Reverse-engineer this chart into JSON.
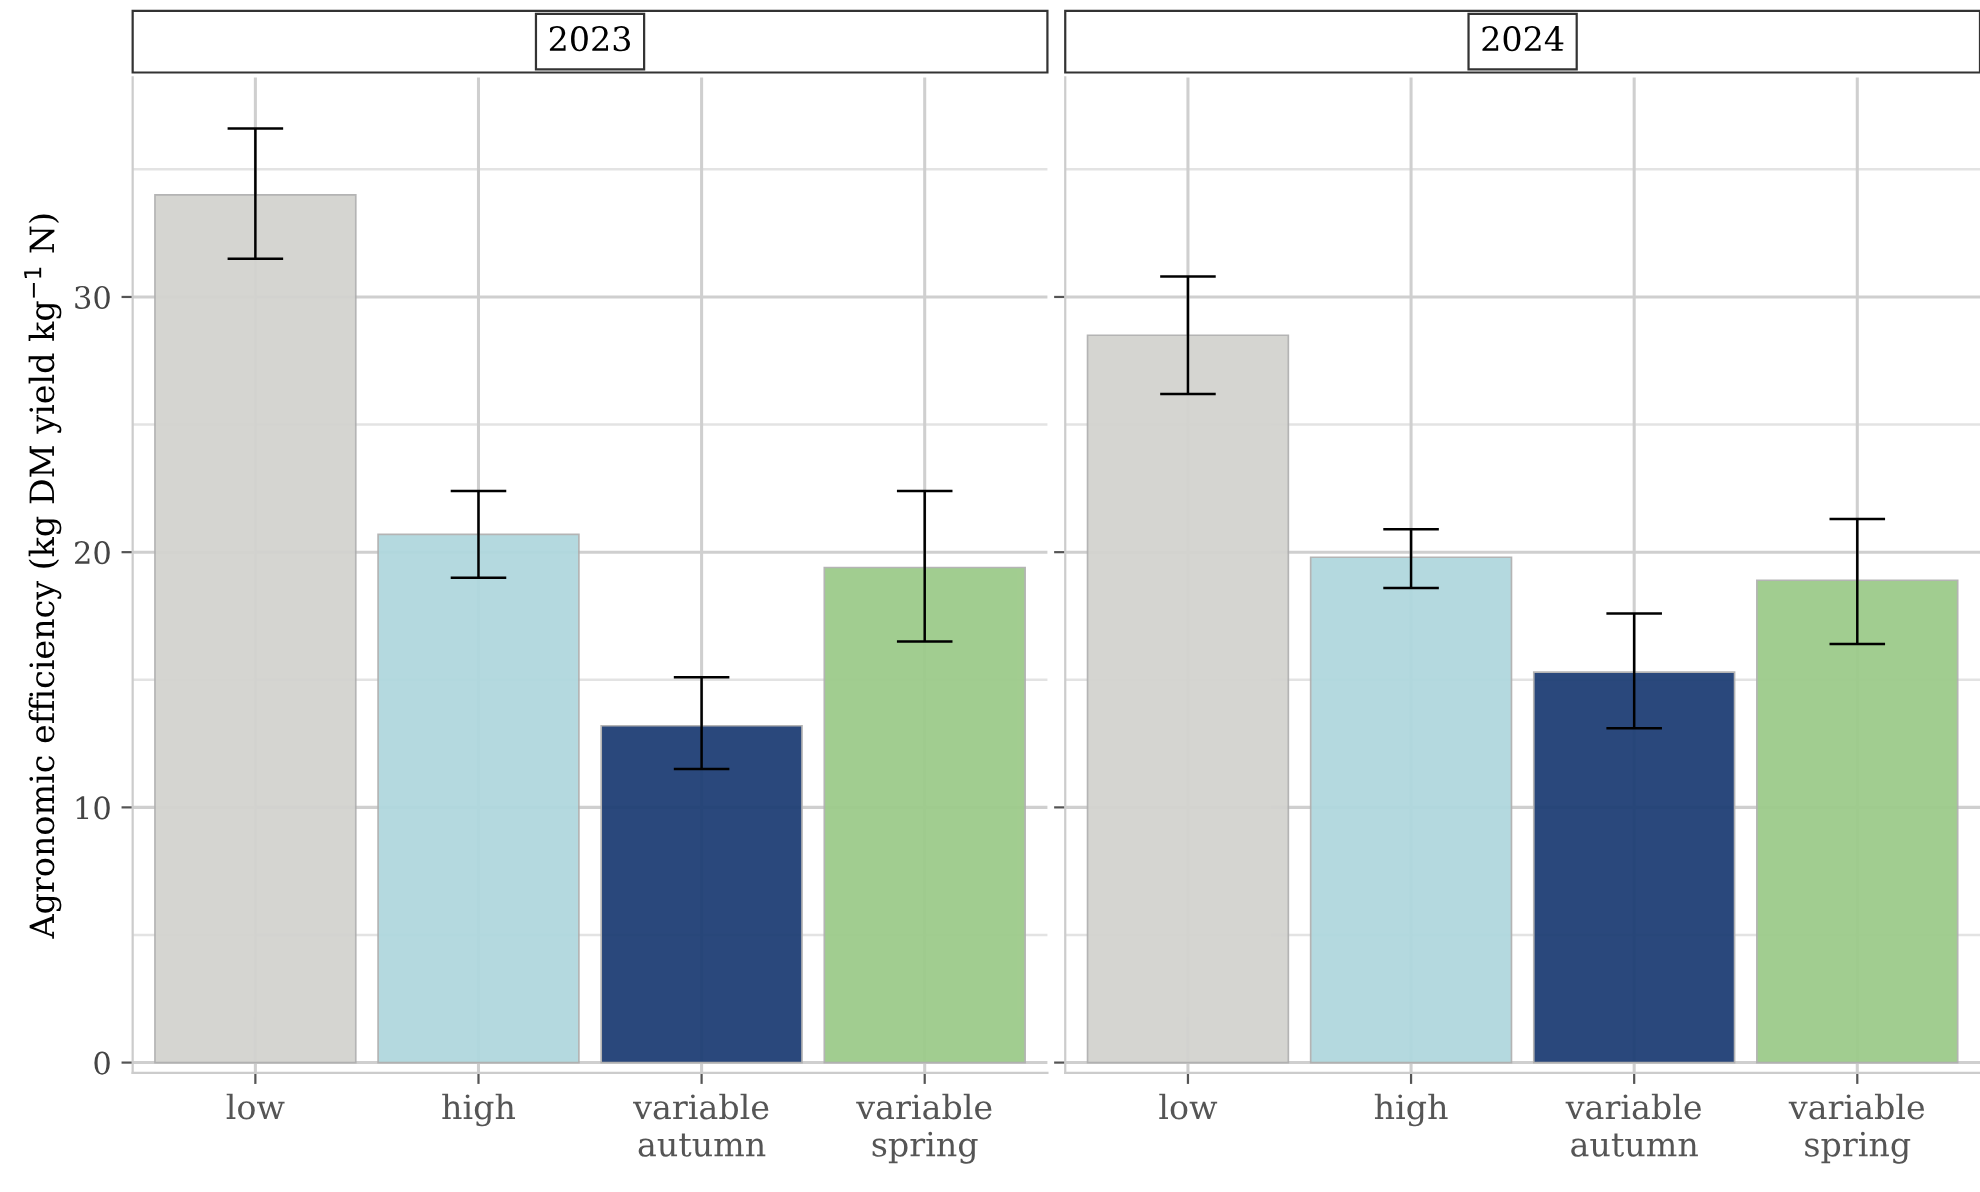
{
  "chart_data": [
    {
      "type": "bar",
      "title": "2023",
      "ylabel": "Agronomic efficiency (kg DM yield kg$^{−1}$ N)",
      "categories": [
        "low",
        "high",
        "variable\nautumn",
        "variable\nspring"
      ],
      "values": [
        34.0,
        20.7,
        13.2,
        19.4
      ],
      "colors": [
        "#d3d3cf",
        "#b0d8de",
        "#1f3f75",
        "#9dcb8b"
      ],
      "errors": [
        [
          31.5,
          36.6
        ],
        [
          19.0,
          22.4
        ],
        [
          11.5,
          15.1
        ],
        [
          16.5,
          22.4
        ]
      ],
      "ylim": [
        -0.4,
        38.6
      ],
      "yticks": [
        0,
        10,
        20,
        30
      ],
      "grid": true
    },
    {
      "type": "bar",
      "title": "2024",
      "categories": [
        "low",
        "high",
        "variable\nautumn",
        "variable\nspring"
      ],
      "values": [
        28.5,
        19.8,
        15.3,
        18.9
      ],
      "colors": [
        "#d3d3cf",
        "#b0d8de",
        "#1f3f75",
        "#9dcb8b"
      ],
      "errors": [
        [
          26.2,
          30.8
        ],
        [
          18.6,
          20.9
        ],
        [
          13.1,
          17.6
        ],
        [
          16.4,
          21.3
        ]
      ],
      "ylim": [
        -0.4,
        38.6
      ],
      "yticks": [
        0,
        10,
        20,
        30
      ],
      "grid": true,
      "tick_labels": "x"
    }
  ]
}
